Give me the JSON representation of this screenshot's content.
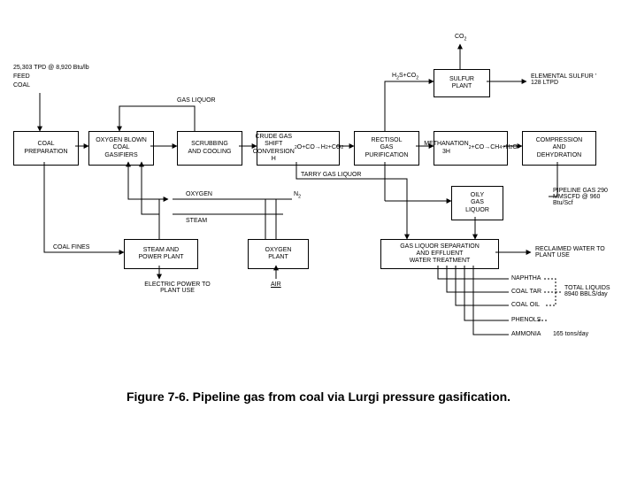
{
  "type": "flowchart",
  "background_color": "#ffffff",
  "line_color": "#000000",
  "fontsize_small": 7,
  "fontsize_caption": 14,
  "feed": {
    "l1": "25,303 TPD @ 8,920 Btu/lb",
    "l2": "FEED",
    "l3": "COAL"
  },
  "labels": {
    "co2": "CO<sub>2</sub>",
    "h2sco2": "H<sub>2</sub>S+CO<sub>2</sub>",
    "gas_liquor": "GAS LIQUOR",
    "tarry": "TARRY GAS LIQUOR",
    "oxygen": "OXYGEN",
    "steam": "STEAM",
    "n2": "N<sub>2</sub>",
    "coal_fines": "COAL FINES",
    "elec": "ELECTRIC POWER TO PLANT USE",
    "air": "AIR",
    "naphtha": "NAPHTHA",
    "coaltar": "COAL TAR",
    "coaloil": "COAL OIL",
    "phenols": "PHENOLS",
    "ammonia": "AMMONIA"
  },
  "out": {
    "elemental": "ELEMENTAL SULFUR ’ 128 LTPD",
    "pipeline": "PIPELINE GAS 290 MMSCFD @ 960 Btu/Scf",
    "reclaimed": "RECLAIMED WATER TO PLANT USE",
    "liquids": "TOTAL LIQUIDS 8940 BBLS/day",
    "ammonia": "165 tons/day"
  },
  "nodes": {
    "coal_prep": "COAL<br>PREPARATION",
    "gasifiers": "OXYGEN BLOWN<br>COAL<br>GASIFIERS",
    "scrub": "SCRUBBING<br>AND COOLING",
    "crude": "CRUDE GAS<br>SHIFT CONVERSION<br>H<sub>2</sub>O+CO→H<sub>2</sub>+CO<sub>2</sub>",
    "rectisol": "RECTISOL<br>GAS<br>PURIFICATION",
    "meth": "METHANATION<br>3H<sub>2</sub>+CO→CH<sub>4</sub>+H<sub>2</sub>O",
    "comp": "COMPRESSION<br>AND<br>DEHYDRATION",
    "sulfur": "SULFUR<br>PLANT",
    "oily": "OILY<br>GAS<br>LIQUOR",
    "steamplant": "STEAM AND<br>POWER PLANT",
    "o2plant": "OXYGEN<br>PLANT",
    "treat": "GAS LIQUOR SEPARATION<br>AND EFFLUENT<br>WATER TREATMENT"
  },
  "caption": "Figure 7-6.  Pipeline gas from coal via Lurgi pressure gasification.",
  "layout": {
    "coal_prep": [
      15,
      148,
      70,
      35
    ],
    "gasifiers": [
      100,
      148,
      70,
      35
    ],
    "scrub": [
      200,
      148,
      70,
      35
    ],
    "crude": [
      290,
      148,
      90,
      35
    ],
    "rectisol": [
      400,
      148,
      70,
      35
    ],
    "meth": [
      490,
      148,
      80,
      35
    ],
    "comp": [
      590,
      148,
      80,
      35
    ],
    "sulfur": [
      490,
      78,
      60,
      28
    ],
    "oily": [
      510,
      210,
      55,
      35
    ],
    "steamplant": [
      140,
      270,
      80,
      30
    ],
    "o2plant": [
      280,
      270,
      65,
      30
    ],
    "treat": [
      430,
      270,
      130,
      30
    ]
  }
}
